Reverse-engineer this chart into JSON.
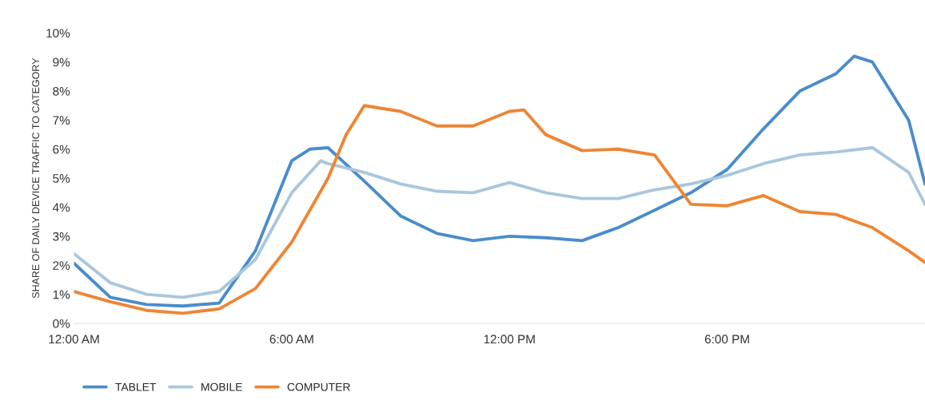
{
  "chart_data": {
    "type": "line",
    "ylabel": "SHARE OF DAILY DEVICE TRAFFIC TO CATEGORY",
    "xlim": [
      0,
      23.45
    ],
    "xticks": [
      {
        "value": 0,
        "label": "12:00 AM"
      },
      {
        "value": 6,
        "label": "6:00 AM"
      },
      {
        "value": 12,
        "label": "12:00 PM"
      },
      {
        "value": 18,
        "label": "6:00 PM"
      }
    ],
    "ylim": [
      0,
      10
    ],
    "yticks": [
      {
        "value": 0,
        "label": "0%"
      },
      {
        "value": 1,
        "label": "1%"
      },
      {
        "value": 2,
        "label": "2%"
      },
      {
        "value": 3,
        "label": "3%"
      },
      {
        "value": 4,
        "label": "4%"
      },
      {
        "value": 5,
        "label": "5%"
      },
      {
        "value": 6,
        "label": "6%"
      },
      {
        "value": 7,
        "label": "7%"
      },
      {
        "value": 8,
        "label": "8%"
      },
      {
        "value": 9,
        "label": "9%"
      },
      {
        "value": 10,
        "label": "10%"
      }
    ],
    "grid": false,
    "legend": "bottom left",
    "line_style": "solid",
    "marker": "none",
    "series": [
      {
        "name": "TABLET",
        "color": "#4a8ccb",
        "x": [
          0,
          1,
          2,
          3,
          4,
          5,
          6,
          6.5,
          7,
          8,
          9,
          10,
          11,
          12,
          13,
          14,
          15,
          16,
          17,
          18,
          19,
          20,
          21,
          21.5,
          22,
          23,
          23.45
        ],
        "values": [
          2.07,
          0.9,
          0.65,
          0.6,
          0.7,
          2.5,
          5.6,
          6.0,
          6.05,
          4.9,
          3.7,
          3.1,
          2.85,
          3.0,
          2.95,
          2.85,
          3.3,
          3.9,
          4.5,
          5.3,
          6.7,
          8.0,
          8.6,
          9.2,
          9.0,
          7.0,
          4.8
        ]
      },
      {
        "name": "MOBILE",
        "color": "#a9c7dd",
        "x": [
          0,
          1,
          2,
          3,
          4,
          5,
          6,
          6.8,
          7,
          8,
          9,
          10,
          11,
          12,
          13,
          14,
          15,
          16,
          17,
          18,
          19,
          20,
          21,
          22,
          23,
          23.45
        ],
        "values": [
          2.4,
          1.4,
          1.0,
          0.9,
          1.1,
          2.2,
          4.5,
          5.6,
          5.5,
          5.2,
          4.8,
          4.55,
          4.5,
          4.85,
          4.5,
          4.3,
          4.3,
          4.6,
          4.8,
          5.1,
          5.5,
          5.8,
          5.9,
          6.05,
          5.2,
          4.1
        ]
      },
      {
        "name": "COMPUTER",
        "color": "#ee8533",
        "x": [
          0,
          1,
          2,
          3,
          4,
          5,
          6,
          7,
          7.5,
          8,
          9,
          10,
          11,
          12,
          12.4,
          13,
          14,
          15,
          16,
          17,
          18,
          19,
          20,
          21,
          22,
          23,
          23.45
        ],
        "values": [
          1.1,
          0.75,
          0.45,
          0.35,
          0.5,
          1.2,
          2.8,
          5.0,
          6.5,
          7.5,
          7.3,
          6.8,
          6.8,
          7.3,
          7.35,
          6.5,
          5.95,
          6.0,
          5.8,
          4.1,
          4.05,
          4.4,
          3.85,
          3.75,
          3.3,
          2.5,
          2.1
        ]
      }
    ]
  }
}
